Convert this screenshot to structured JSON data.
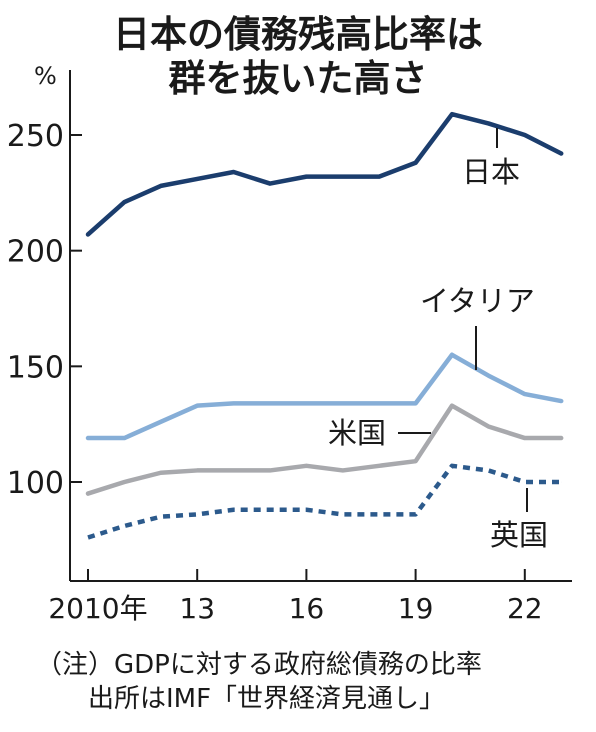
{
  "title": [
    "日本の債務残高比率は",
    "群を抜いた高さ"
  ],
  "notes": [
    "（注）GDPに対する政府総債務の比率",
    "出所はIMF「世界経済見通し」"
  ],
  "chart_data": {
    "type": "line",
    "title": "日本の債務残高比率は群を抜いた高さ",
    "yunit": "%",
    "ylim": [
      60,
      265
    ],
    "yticks": [
      100,
      150,
      200,
      250
    ],
    "x": [
      2010,
      2011,
      2012,
      2013,
      2014,
      2015,
      2016,
      2017,
      2018,
      2019,
      2020,
      2021,
      2022,
      2023
    ],
    "xticks": [
      {
        "x": 2010,
        "label": "2010年"
      },
      {
        "x": 2013,
        "label": "13"
      },
      {
        "x": 2016,
        "label": "16"
      },
      {
        "x": 2019,
        "label": "19"
      },
      {
        "x": 2022,
        "label": "22"
      }
    ],
    "grid": false,
    "series": [
      {
        "name": "日本",
        "color": "#1b3d6d",
        "style": "solid",
        "values": [
          207,
          221,
          228,
          231,
          234,
          229,
          232,
          232,
          232,
          238,
          259,
          255,
          250,
          242
        ]
      },
      {
        "name": "イタリア",
        "color": "#86aed7",
        "style": "solid",
        "values": [
          119,
          119,
          126,
          133,
          134,
          134,
          134,
          134,
          134,
          134,
          155,
          146,
          138,
          135
        ]
      },
      {
        "name": "米国",
        "color": "#a8a9ad",
        "style": "solid",
        "values": [
          95,
          100,
          104,
          105,
          105,
          105,
          107,
          105,
          107,
          109,
          133,
          124,
          119,
          119
        ]
      },
      {
        "name": "英国",
        "color": "#2c5a8c",
        "style": "dashed",
        "values": [
          76,
          81,
          85,
          86,
          88,
          88,
          88,
          86,
          86,
          86,
          107,
          105,
          100,
          100
        ]
      }
    ]
  }
}
